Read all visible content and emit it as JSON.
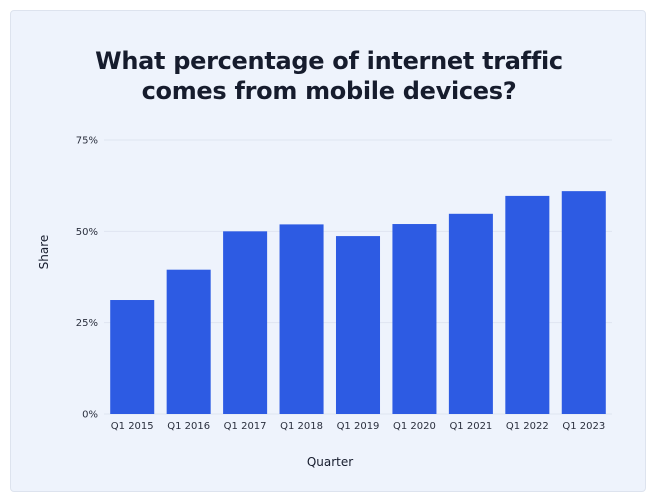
{
  "chart_data": {
    "type": "bar",
    "title_lines": [
      "What percentage of internet traffic",
      "comes from mobile devices?"
    ],
    "xlabel": "Quarter",
    "ylabel": "Share",
    "categories": [
      "Q1 2015",
      "Q1 2016",
      "Q1 2017",
      "Q1 2018",
      "Q1 2019",
      "Q1 2020",
      "Q1 2021",
      "Q1 2022",
      "Q1 2023"
    ],
    "values": [
      31.2,
      39.5,
      50.0,
      51.9,
      48.7,
      52.0,
      54.8,
      59.7,
      61.0
    ],
    "ylim": [
      0,
      75
    ],
    "yticks": [
      0,
      25,
      50,
      75
    ],
    "ytick_labels": [
      "0%",
      "25%",
      "50%",
      "75%"
    ],
    "grid": true,
    "colors": {
      "bar": "#2d5be3",
      "background": "#eef3fc",
      "grid": "#dfe5f0"
    }
  }
}
